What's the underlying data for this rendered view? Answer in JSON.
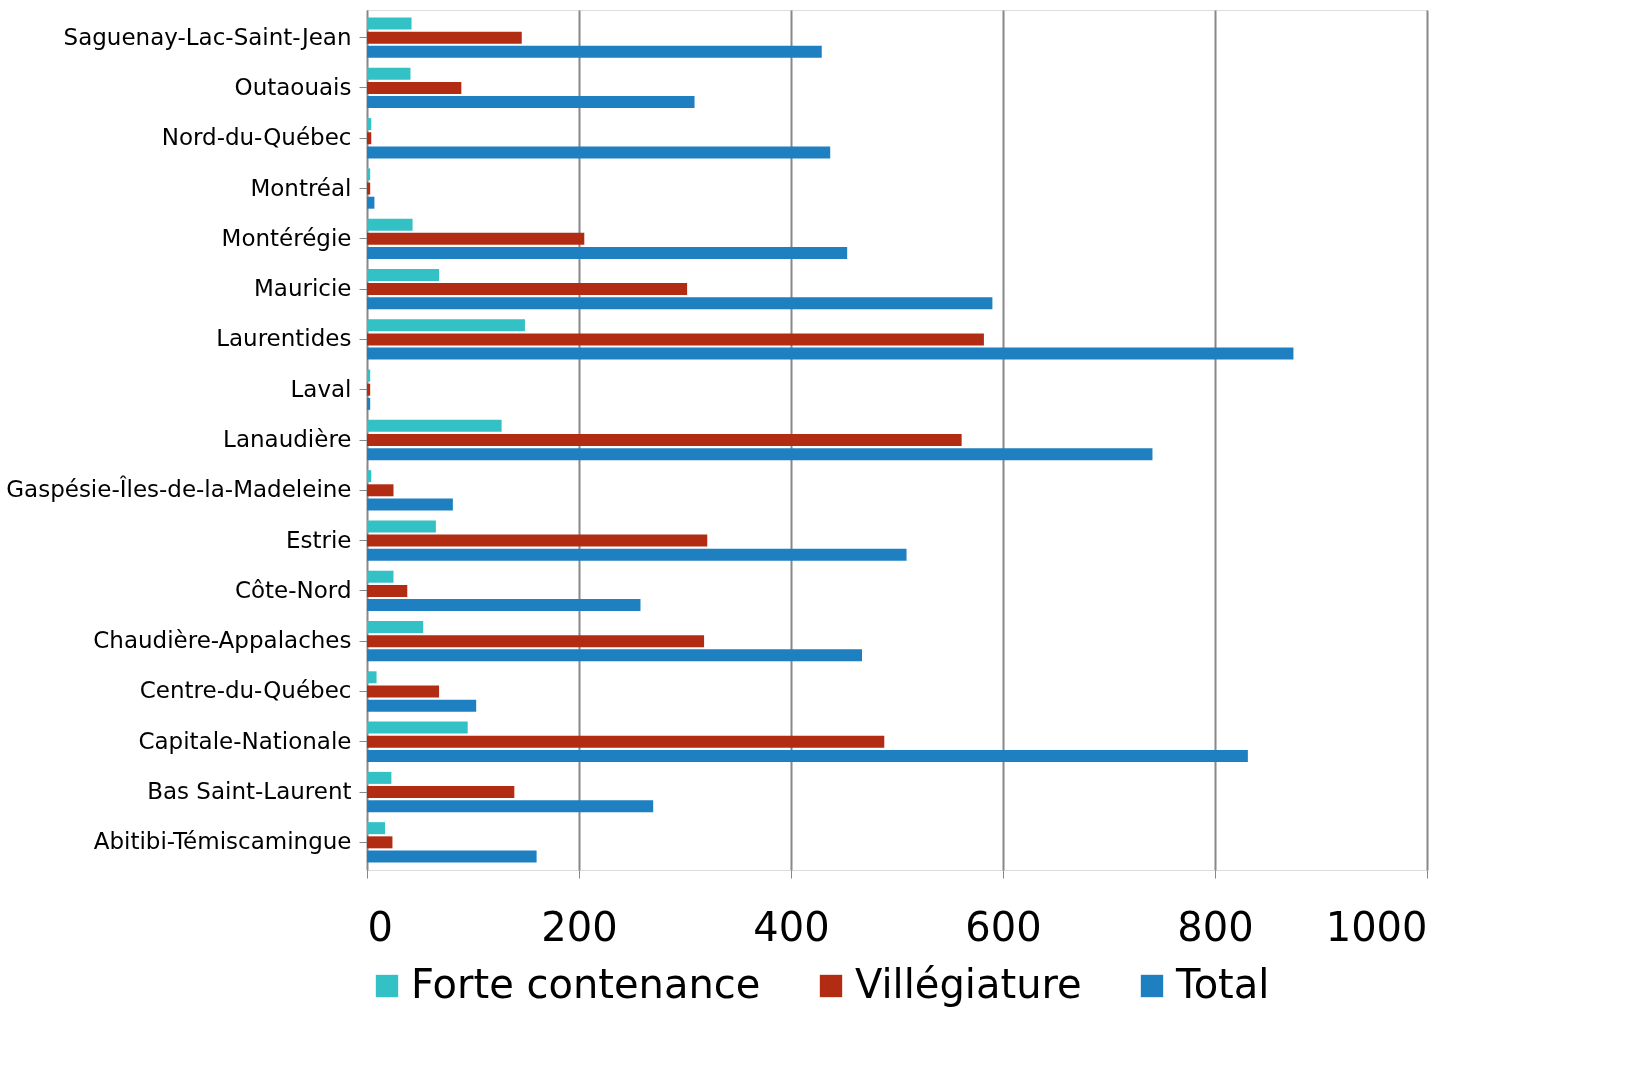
{
  "chart_data": {
    "type": "bar",
    "orientation": "horizontal",
    "categories": [
      "Saguenay-Lac-Saint-Jean",
      "Outaouais",
      "Nord-du-Québec",
      "Montréal",
      "Montérégie",
      "Mauricie",
      "Laurentides",
      "Laval",
      "Lanaudière",
      "Gaspésie-Îles-de-la-Madeleine",
      "Estrie",
      "Côte-Nord",
      "Chaudière-Appalaches",
      "Centre-du-Québec",
      "Capitale-Nationale",
      "Bas Saint-Laurent",
      "Abitibi-Témiscamingue"
    ],
    "series": [
      {
        "name": "Forte contenance",
        "color": "#33c1c6",
        "values": [
          42,
          41,
          4,
          3,
          43,
          68,
          149,
          3,
          127,
          4,
          65,
          25,
          53,
          9,
          95,
          23,
          17
        ]
      },
      {
        "name": "Villégiature",
        "color": "#b22c14",
        "values": [
          146,
          89,
          4,
          3,
          205,
          302,
          582,
          3,
          561,
          25,
          321,
          38,
          318,
          68,
          488,
          139,
          24
        ]
      },
      {
        "name": "Total",
        "color": "#1e7fc1",
        "values": [
          429,
          309,
          437,
          7,
          453,
          590,
          874,
          3,
          741,
          81,
          509,
          258,
          467,
          103,
          831,
          270,
          160
        ]
      }
    ],
    "xlim": [
      0,
      1000
    ],
    "xticks": [
      0,
      200,
      400,
      600,
      800,
      {
        "value": 1000,
        "label": "1000"
      }
    ],
    "grid": "x",
    "legend": "bottom"
  }
}
